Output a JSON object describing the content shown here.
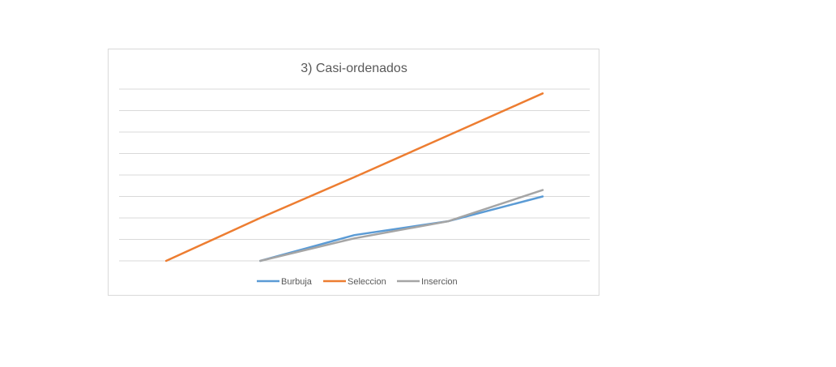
{
  "chart_data": {
    "type": "line",
    "title": "3) Casi-ordenados",
    "xlabel": "",
    "ylabel": "",
    "categories": [
      "",
      "",
      "",
      "",
      ""
    ],
    "ylim": [
      0,
      8
    ],
    "grid": true,
    "legend_position": "bottom",
    "series": [
      {
        "name": "Burbuja",
        "color": "#5b9bd5",
        "values": [
          null,
          0,
          1.2,
          1.85,
          3.0
        ]
      },
      {
        "name": "Seleccion",
        "color": "#ed7d31",
        "values": [
          0,
          2.0,
          3.9,
          5.85,
          7.8
        ]
      },
      {
        "name": "Insercion",
        "color": "#a5a5a5",
        "values": [
          null,
          0,
          1.05,
          1.85,
          3.3
        ]
      }
    ]
  }
}
